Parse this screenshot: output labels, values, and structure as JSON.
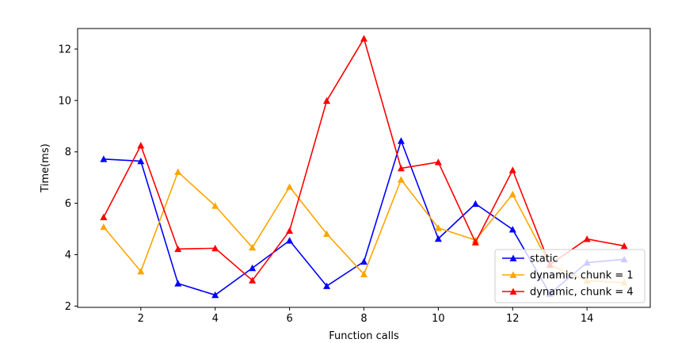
{
  "chart_data": {
    "type": "line",
    "title": "",
    "xlabel": "Function calls",
    "ylabel": "Time(ms)",
    "xlim": [
      0.3,
      15.7
    ],
    "ylim": [
      1.95,
      12.8
    ],
    "xticks": [
      2,
      4,
      6,
      8,
      10,
      12,
      14
    ],
    "yticks": [
      2,
      4,
      6,
      8,
      10,
      12
    ],
    "x": [
      1,
      2,
      3,
      4,
      5,
      6,
      7,
      8,
      9,
      10,
      11,
      12,
      13,
      14,
      15
    ],
    "grid": false,
    "legend_position": "lower-right",
    "marker": "triangle-up",
    "series": [
      {
        "name": "static",
        "color": "#0000ff",
        "values": [
          7.72,
          7.64,
          2.88,
          2.43,
          3.48,
          4.55,
          2.78,
          3.73,
          8.43,
          4.62,
          5.98,
          4.98,
          2.48,
          3.69,
          3.82
        ]
      },
      {
        "name": "dynamic, chunk = 1",
        "color": "#ffa500",
        "values": [
          5.08,
          3.35,
          7.22,
          5.9,
          4.28,
          6.64,
          4.81,
          3.24,
          6.92,
          5.04,
          4.57,
          6.35,
          3.6,
          2.99,
          2.91
        ]
      },
      {
        "name": "dynamic, chunk = 4",
        "color": "#ff0000",
        "values": [
          5.46,
          8.25,
          4.22,
          4.25,
          3.0,
          4.93,
          9.99,
          12.41,
          7.36,
          7.6,
          4.48,
          7.29,
          3.61,
          4.61,
          4.34
        ]
      }
    ]
  }
}
